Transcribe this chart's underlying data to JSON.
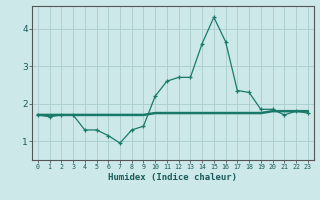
{
  "xlabel": "Humidex (Indice chaleur)",
  "x": [
    0,
    1,
    2,
    3,
    4,
    5,
    6,
    7,
    8,
    9,
    10,
    11,
    12,
    13,
    14,
    15,
    16,
    17,
    18,
    19,
    20,
    21,
    22,
    23
  ],
  "y_curve": [
    1.7,
    1.65,
    1.7,
    1.7,
    1.3,
    1.3,
    1.15,
    0.95,
    1.3,
    1.4,
    2.2,
    2.6,
    2.7,
    2.7,
    3.6,
    4.3,
    3.65,
    2.35,
    2.3,
    1.85,
    1.85,
    1.7,
    1.8,
    1.75
  ],
  "y_flat": [
    1.7,
    1.7,
    1.7,
    1.7,
    1.7,
    1.7,
    1.7,
    1.7,
    1.7,
    1.7,
    1.75,
    1.75,
    1.75,
    1.75,
    1.75,
    1.75,
    1.75,
    1.75,
    1.75,
    1.75,
    1.8,
    1.8,
    1.8,
    1.8
  ],
  "line_color": "#1a7a6a",
  "bg_color": "#cde8e8",
  "grid_color": "#aacccc",
  "ylim": [
    0.5,
    4.6
  ],
  "yticks": [
    1,
    2,
    3,
    4
  ],
  "xlim": [
    -0.5,
    23.5
  ],
  "xticks": [
    0,
    1,
    2,
    3,
    4,
    5,
    6,
    7,
    8,
    9,
    10,
    11,
    12,
    13,
    14,
    15,
    16,
    17,
    18,
    19,
    20,
    21,
    22,
    23
  ]
}
